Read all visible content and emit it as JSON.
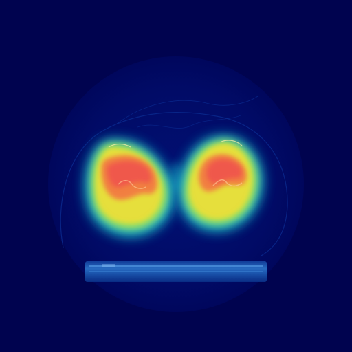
{
  "image": {
    "kind": "CT cross-section with heatmap overlay",
    "colors": {
      "background": "#00034f",
      "field_of_view": "#010a6a",
      "table": "#1f5fb8",
      "heat_low": "#1fd0d8",
      "heat_mid": "#e8e23a",
      "heat_high": "#f27a43",
      "heat_peak": "#ef4b4f"
    }
  }
}
